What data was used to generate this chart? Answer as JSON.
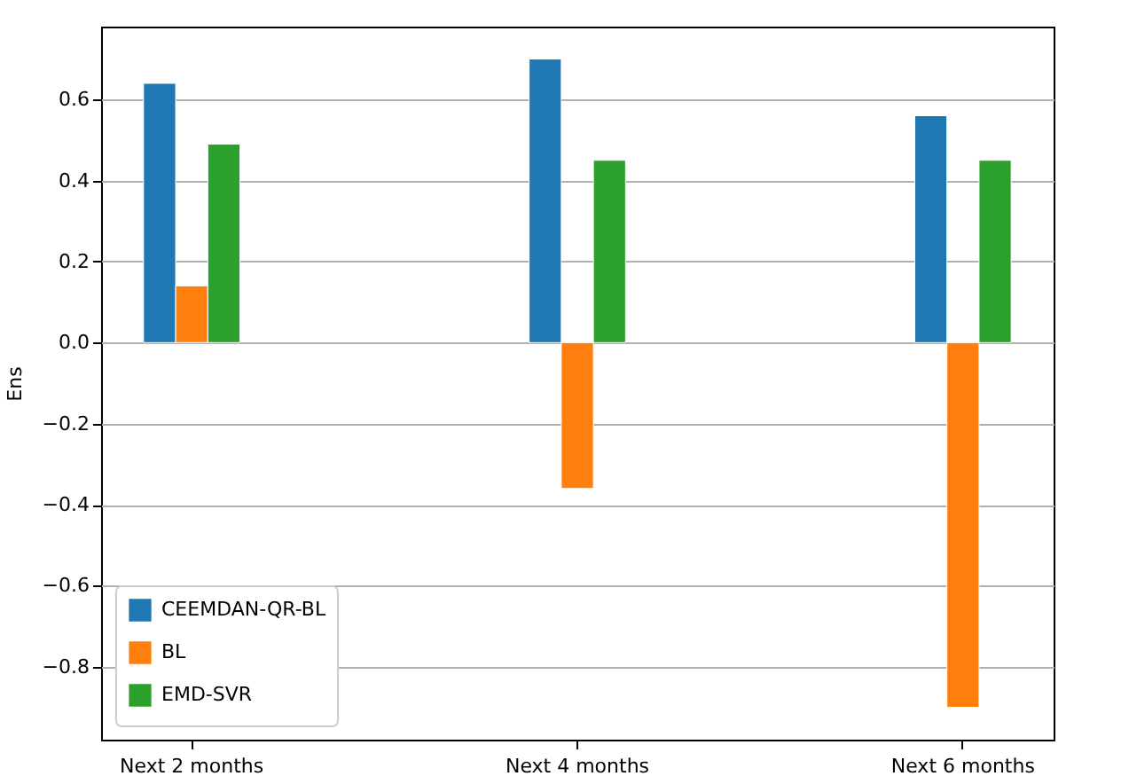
{
  "chart_data": {
    "type": "bar",
    "ylabel": "Ens",
    "categories": [
      "Next 2 months",
      "Next 4 months",
      "Next 6 months"
    ],
    "series": [
      {
        "name": "CEEMDAN-QR-BL",
        "color": "#1f77b4",
        "values": [
          0.64,
          0.7,
          0.56
        ]
      },
      {
        "name": "BL",
        "color": "#ff7f0e",
        "values": [
          0.14,
          -0.36,
          -0.9
        ]
      },
      {
        "name": "EMD-SVR",
        "color": "#2ca02c",
        "values": [
          0.49,
          0.45,
          0.45
        ]
      }
    ],
    "ylim": [
      -0.98,
      0.78
    ],
    "yticks": [
      -0.8,
      -0.6,
      -0.4,
      -0.2,
      {
        "value": 0,
        "label": "0.0"
      },
      0.2,
      0.4,
      0.6
    ],
    "grid": "y",
    "legend": "bottom left"
  }
}
